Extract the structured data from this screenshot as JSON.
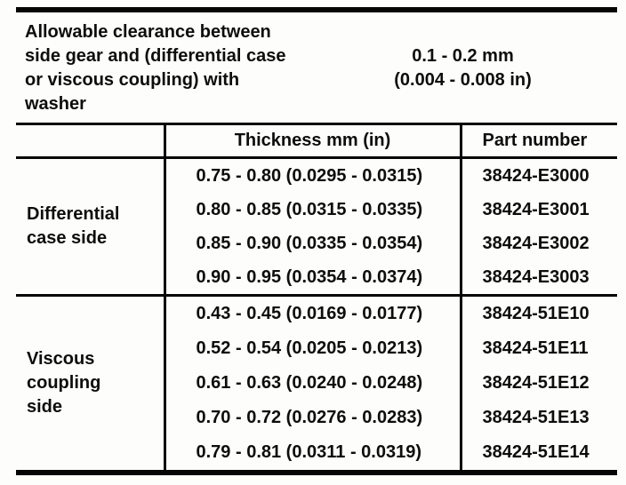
{
  "colors": {
    "paper": "#fdfdfb",
    "ink": "#0d0d0d",
    "rule": "#050505"
  },
  "clearance_spec": {
    "label_lines": [
      "Allowable clearance between",
      "side gear and (differential case",
      "or viscous coupling) with",
      "washer"
    ],
    "value_lines": [
      "0.1 - 0.2 mm",
      "(0.004 - 0.008 in)"
    ]
  },
  "table": {
    "columns": {
      "side": "",
      "thickness": "Thickness mm (in)",
      "part_number": "Part number"
    },
    "sections": [
      {
        "label": "Differential case side",
        "rows": [
          {
            "thickness": "0.75 - 0.80 (0.0295 - 0.0315)",
            "part_number": "38424-E3000"
          },
          {
            "thickness": "0.80 - 0.85 (0.0315 - 0.0335)",
            "part_number": "38424-E3001"
          },
          {
            "thickness": "0.85 - 0.90 (0.0335 - 0.0354)",
            "part_number": "38424-E3002"
          },
          {
            "thickness": "0.90 - 0.95 (0.0354 - 0.0374)",
            "part_number": "38424-E3003"
          }
        ]
      },
      {
        "label": "Viscous coupling side",
        "rows": [
          {
            "thickness": "0.43 - 0.45 (0.0169 - 0.0177)",
            "part_number": "38424-51E10"
          },
          {
            "thickness": "0.52 - 0.54 (0.0205 - 0.0213)",
            "part_number": "38424-51E11"
          },
          {
            "thickness": "0.61 - 0.63 (0.0240 - 0.0248)",
            "part_number": "38424-51E12"
          },
          {
            "thickness": "0.70 - 0.72 (0.0276 - 0.0283)",
            "part_number": "38424-51E13"
          },
          {
            "thickness": "0.79 - 0.81 (0.0311 - 0.0319)",
            "part_number": "38424-51E14"
          }
        ]
      }
    ]
  }
}
